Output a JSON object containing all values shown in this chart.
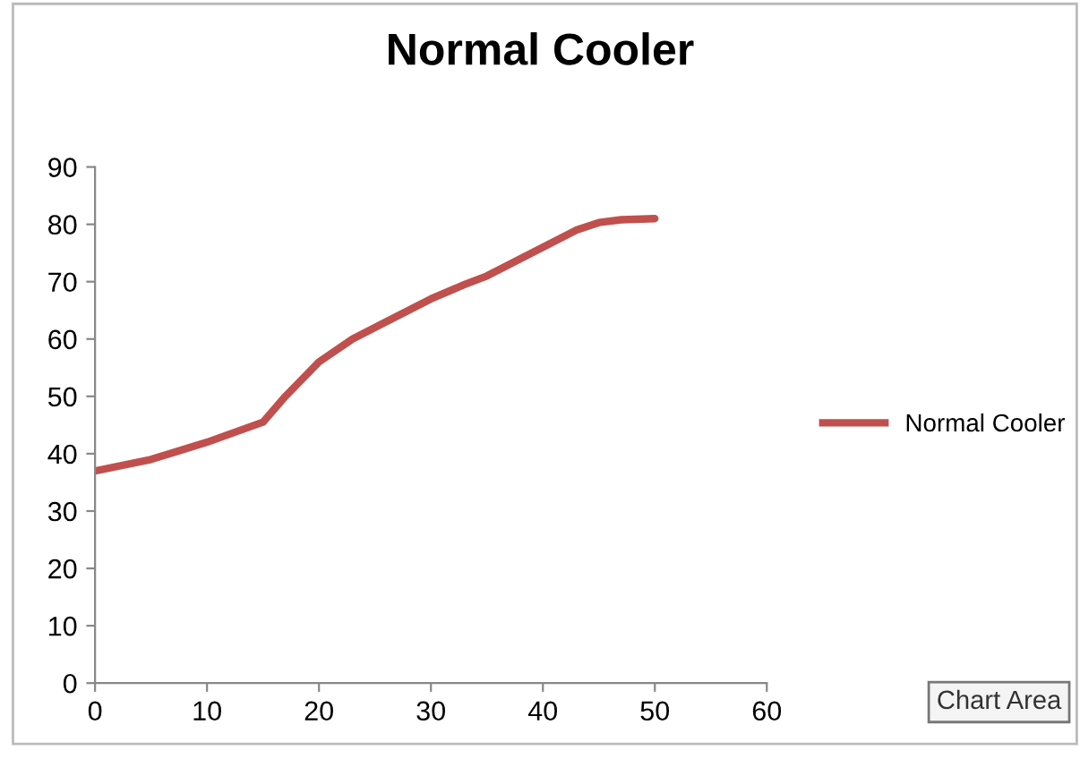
{
  "chart_data": {
    "type": "line",
    "title": "Normal Cooler",
    "x": [
      0,
      5,
      10,
      15,
      17,
      20,
      23,
      26,
      30,
      33,
      35,
      40,
      43,
      45,
      47,
      50
    ],
    "series": [
      {
        "name": "Normal Cooler",
        "color": "#c0504d",
        "values": [
          37,
          39,
          42,
          45.5,
          50,
          56,
          60,
          63,
          67,
          69.5,
          71,
          76,
          79,
          80.3,
          80.8,
          81
        ]
      }
    ],
    "xlim": [
      0,
      60
    ],
    "xticks": [
      0,
      10,
      20,
      30,
      40,
      50,
      60
    ],
    "ylim": [
      0,
      90
    ],
    "yticks": [
      0,
      10,
      20,
      30,
      40,
      50,
      60,
      70,
      80,
      90
    ],
    "grid": false,
    "legend": "right",
    "marker": "none",
    "line_style": "solid",
    "annotations": [
      "Chart Area"
    ]
  }
}
